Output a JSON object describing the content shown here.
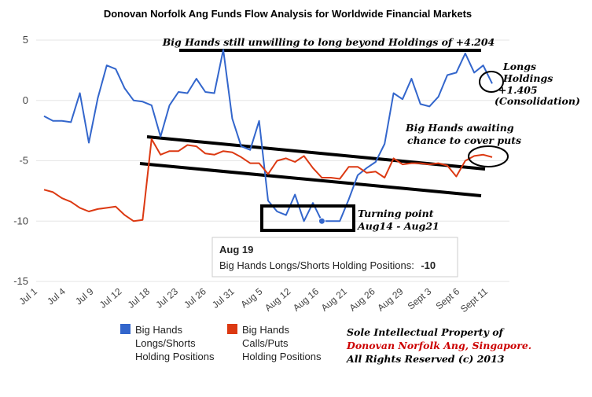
{
  "chart_data": {
    "type": "line",
    "title": "Donovan Norfolk Ang Funds Flow Analysis for Worldwide Financial Markets",
    "ylim": [
      -15,
      5
    ],
    "y_ticks": [
      "5",
      "0",
      "-5",
      "-10",
      "-15"
    ],
    "x_tick_labels": [
      "Jul 1",
      "Jul 4",
      "Jul 9",
      "Jul 12",
      "Jul 18",
      "Jul 23",
      "Jul 26",
      "Jul 31",
      "Aug 5",
      "Aug 12",
      "Aug 16",
      "Aug 21",
      "Aug 26",
      "Aug 29",
      "Sept 3",
      "Sept 6",
      "Sept 11"
    ],
    "gridlines": true,
    "series": [
      {
        "name": "Big Hands Longs/Shorts Holding Positions",
        "legend_lines": [
          "Big Hands",
          "Longs/Shorts",
          "Holding Positions"
        ],
        "color": "#3366cc",
        "values": [
          -1.3,
          -1.7,
          -1.7,
          -1.8,
          0.6,
          -3.5,
          0.2,
          2.9,
          2.6,
          1.0,
          0.0,
          -0.1,
          -0.4,
          -3.0,
          -0.4,
          0.7,
          0.6,
          1.8,
          0.7,
          0.6,
          4.2,
          -1.5,
          -3.8,
          -4.1,
          -1.7,
          -8.3,
          -9.2,
          -9.5,
          -7.8,
          -10.0,
          -8.5,
          -10.0,
          -10.0,
          -10.0,
          -8.2,
          -6.2,
          -5.6,
          -5.1,
          -3.6,
          0.6,
          0.1,
          1.8,
          -0.3,
          -0.5,
          0.3,
          2.1,
          2.3,
          3.9,
          2.3,
          2.9,
          1.4
        ]
      },
      {
        "name": "Big Hands Calls/Puts Holding Positions",
        "legend_lines": [
          "Big Hands",
          "Calls/Puts",
          "Holding Positions"
        ],
        "color": "#dc3912",
        "values": [
          -7.4,
          -7.6,
          -8.1,
          -8.4,
          -8.9,
          -9.2,
          -9.0,
          -8.9,
          -8.8,
          -9.5,
          -10.0,
          -9.9,
          -3.2,
          -4.5,
          -4.2,
          -4.2,
          -3.7,
          -3.8,
          -4.4,
          -4.5,
          -4.2,
          -4.3,
          -4.7,
          -5.2,
          -5.2,
          -6.1,
          -5.0,
          -4.8,
          -5.1,
          -4.6,
          -5.6,
          -6.4,
          -6.4,
          -6.5,
          -5.5,
          -5.5,
          -6.0,
          -5.9,
          -6.4,
          -4.8,
          -5.3,
          -5.2,
          -5.2,
          -5.3,
          -5.2,
          -5.4,
          -6.3,
          -5.0,
          -4.6,
          -4.5,
          -4.7
        ]
      }
    ],
    "tooltip": {
      "title": "Aug 19",
      "label": "Big Hands Longs/Shorts Holding Positions:",
      "value": "-10"
    },
    "annotations": {
      "top_banner": "Big Hands still unwilling to long beyond Holdings of +4.204",
      "longs_holdings": [
        "Longs",
        "Holdings",
        "+1.405",
        "(Consolidation)"
      ],
      "awaiting_cover": [
        "Big Hands awaiting",
        "chance to cover puts"
      ],
      "turning_point": [
        "Turning point",
        "Aug14 - Aug21"
      ],
      "copyright": [
        "Sole Intellectual Property of",
        "Donovan Norfolk Ang, Singapore.",
        "All Rights Reserved (c) 2013"
      ]
    }
  }
}
